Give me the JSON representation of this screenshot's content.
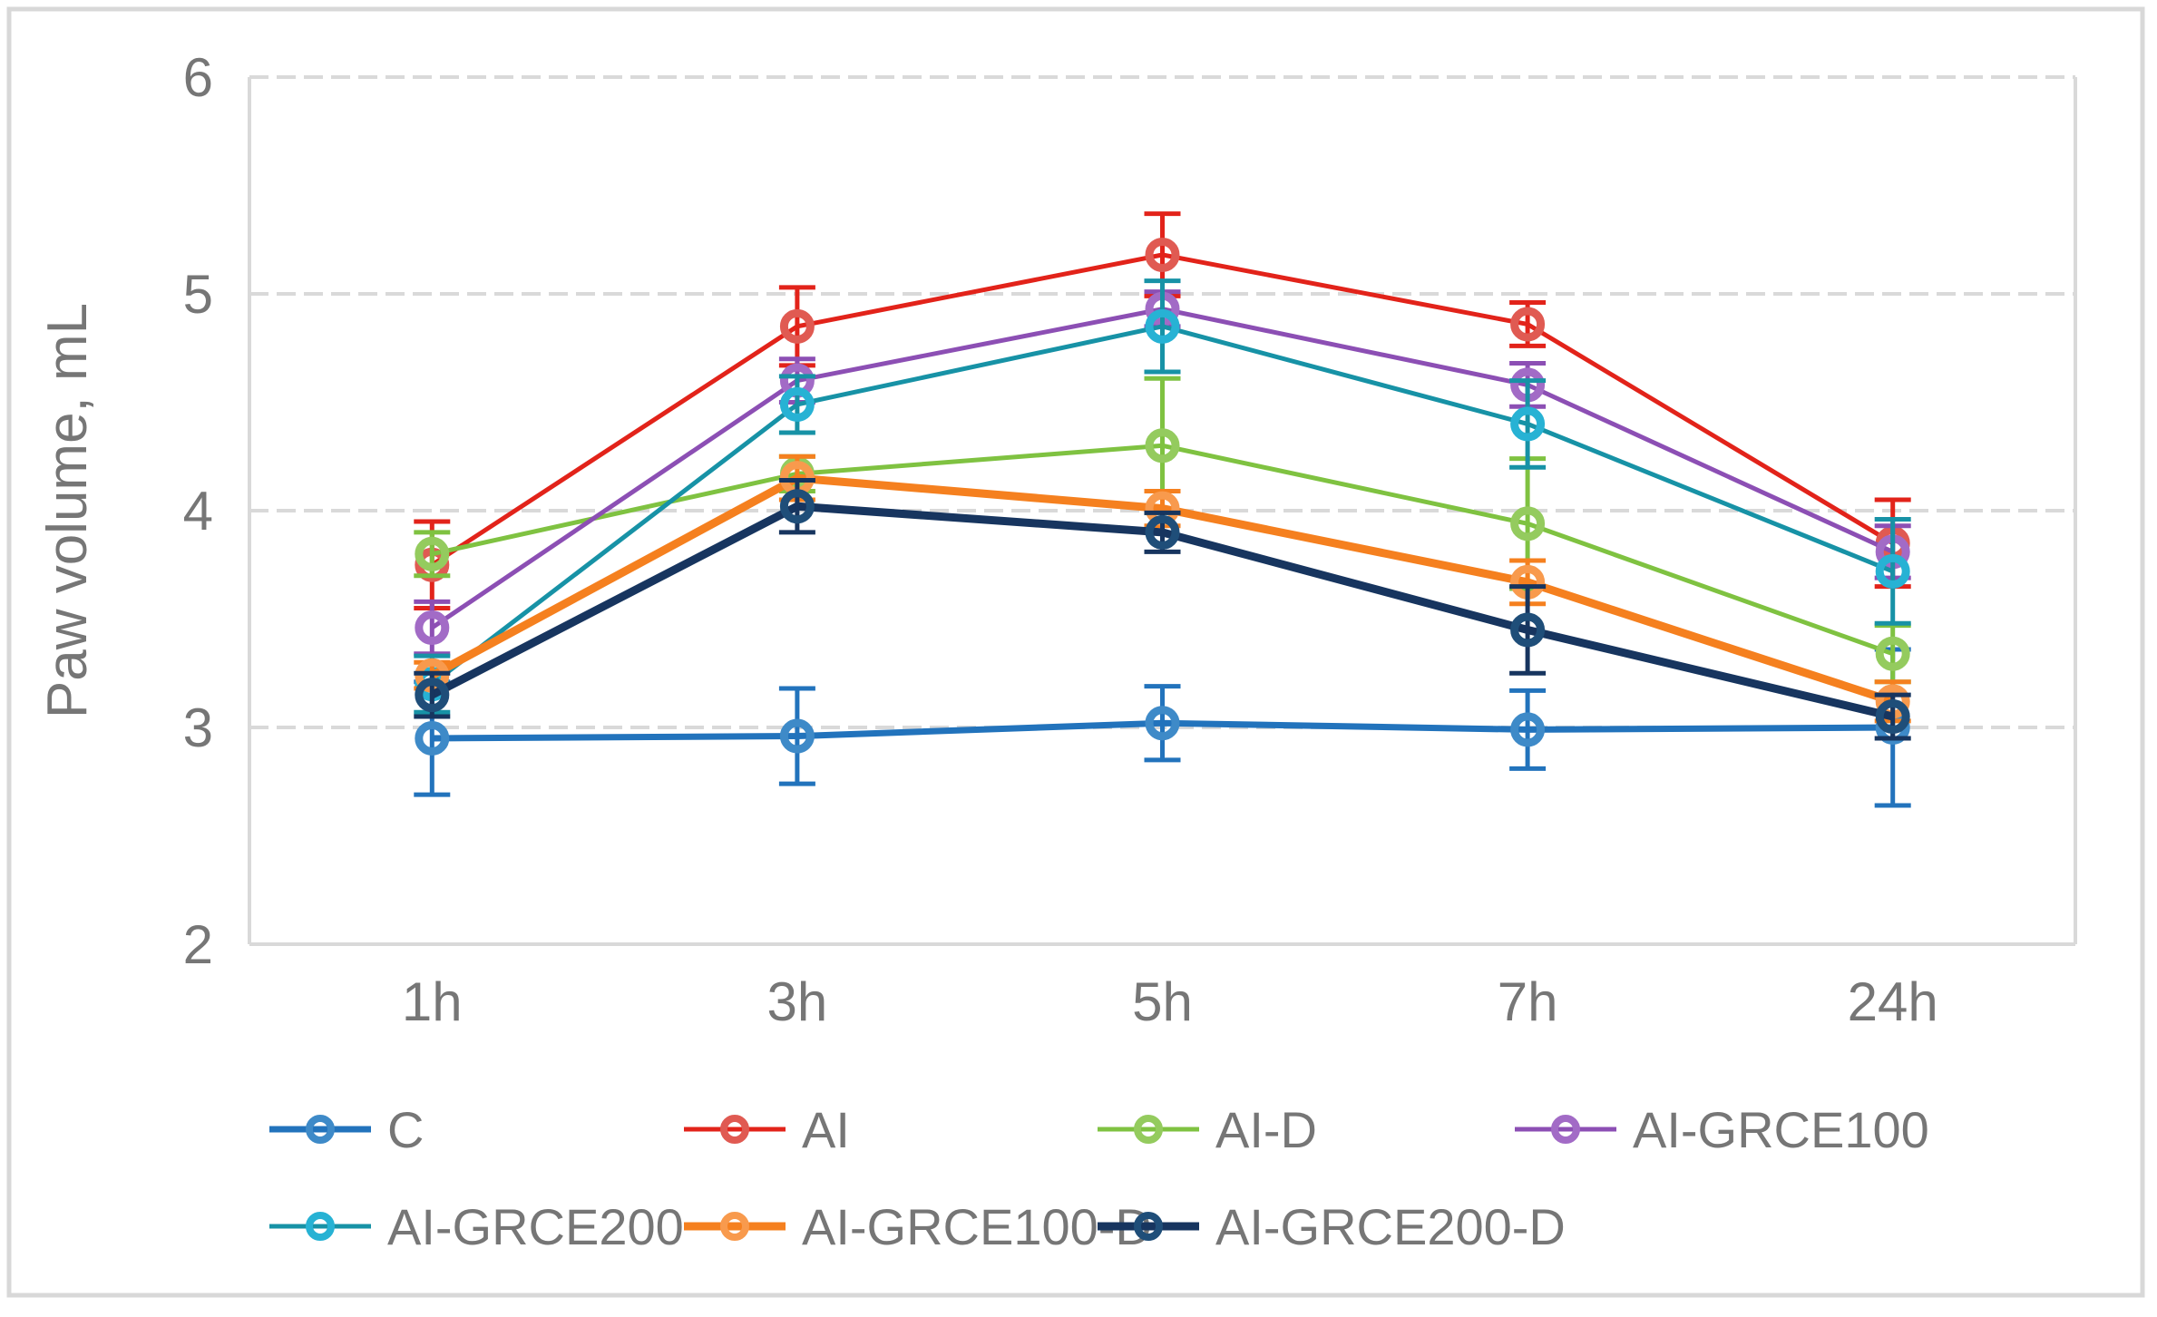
{
  "chart_data": {
    "type": "line",
    "title": "",
    "xlabel": "",
    "ylabel": "Paw volume, mL",
    "categories": [
      "1h",
      "3h",
      "5h",
      "7h",
      "24h"
    ],
    "y_ticks": [
      2,
      3,
      4,
      5,
      6
    ],
    "ylim": [
      2,
      6
    ],
    "grid": "horizontal-dashed",
    "legend_position": "bottom-two-rows",
    "marker_style": "open-circle",
    "error_bars": true,
    "series": [
      {
        "name": "C",
        "values": [
          2.95,
          2.96,
          3.02,
          2.99,
          3.0
        ],
        "errors": [
          0.26,
          0.22,
          0.17,
          0.18,
          0.36
        ],
        "line_color": "#2273BC",
        "marker_color": "#3E8AC8",
        "line_width": 7
      },
      {
        "name": "AI",
        "values": [
          3.75,
          4.85,
          5.18,
          4.86,
          3.85
        ],
        "errors": [
          0.2,
          0.18,
          0.19,
          0.1,
          0.2
        ],
        "line_color": "#E2231A",
        "marker_color": "#E05A52",
        "line_width": 5
      },
      {
        "name": "AI-D",
        "values": [
          3.8,
          4.17,
          4.3,
          3.94,
          3.34
        ],
        "errors": [
          0.1,
          0.08,
          0.31,
          0.3,
          0.13
        ],
        "line_color": "#7FC241",
        "marker_color": "#94CB5E",
        "line_width": 5
      },
      {
        "name": "AI-GRCE100",
        "values": [
          3.46,
          4.6,
          4.93,
          4.58,
          3.81
        ],
        "errors": [
          0.12,
          0.1,
          0.08,
          0.1,
          0.12
        ],
        "line_color": "#8C4FB4",
        "marker_color": "#A26BC6",
        "line_width": 5
      },
      {
        "name": "AI-GRCE200",
        "values": [
          3.2,
          4.49,
          4.85,
          4.4,
          3.72
        ],
        "errors": [
          0.13,
          0.13,
          0.21,
          0.2,
          0.24
        ],
        "line_color": "#1792A6",
        "marker_color": "#27B2D4",
        "line_width": 5
      },
      {
        "name": "AI-GRCE100-D",
        "values": [
          3.24,
          4.15,
          4.01,
          3.67,
          3.12
        ],
        "errors": [
          0.06,
          0.1,
          0.08,
          0.1,
          0.09
        ],
        "line_color": "#F5801F",
        "marker_color": "#F89A4D",
        "line_width": 9
      },
      {
        "name": "AI-GRCE200-D",
        "values": [
          3.15,
          4.02,
          3.9,
          3.45,
          3.05
        ],
        "errors": [
          0.1,
          0.12,
          0.09,
          0.2,
          0.1
        ],
        "line_color": "#17355F",
        "marker_color": "#1F4E79",
        "line_width": 9
      }
    ]
  },
  "colors": {
    "background": "#FFFFFF",
    "frame_border": "#D8D8D8",
    "plot_border": "#D9D9D9",
    "gridline": "#D9D9D9",
    "axis_text": "#767676",
    "legend_text": "#767676"
  }
}
